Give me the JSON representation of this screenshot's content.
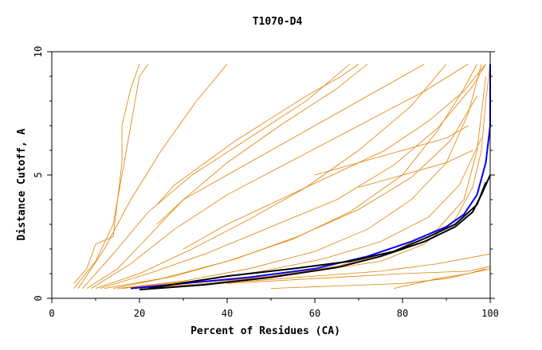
{
  "chart_data": {
    "type": "line",
    "title": "T1070-D4",
    "xlabel": "Percent of Residues (CA)",
    "ylabel": "Distance Cutoff, A",
    "xlim": [
      0,
      100
    ],
    "ylim": [
      0,
      10
    ],
    "x_ticks": [
      "0",
      "20",
      "40",
      "60",
      "80",
      "100"
    ],
    "y_ticks": [
      "0",
      "5",
      "10"
    ],
    "grid": false,
    "colors": {
      "background_models": "#e08000",
      "highlight_blue": "#0000ff",
      "highlight_black": "#000000"
    },
    "series": [
      {
        "color": "#e08000",
        "points": [
          [
            18,
            0.4
          ],
          [
            30,
            0.6
          ],
          [
            45,
            0.8
          ],
          [
            60,
            1.1
          ],
          [
            75,
            1.5
          ],
          [
            85,
            2.2
          ],
          [
            92,
            3.2
          ],
          [
            96,
            4.5
          ],
          [
            98,
            6.0
          ],
          [
            99,
            8.0
          ],
          [
            100,
            9.5
          ]
        ]
      },
      {
        "color": "#e08000",
        "points": [
          [
            5,
            0.4
          ],
          [
            10,
            1.5
          ],
          [
            14,
            3.0
          ],
          [
            16,
            5.0
          ],
          [
            18,
            7.0
          ],
          [
            20,
            9.0
          ],
          [
            22,
            9.5
          ]
        ]
      },
      {
        "color": "#e08000",
        "points": [
          [
            8,
            0.4
          ],
          [
            15,
            1.2
          ],
          [
            22,
            2.5
          ],
          [
            30,
            4.0
          ],
          [
            40,
            5.5
          ],
          [
            52,
            7.0
          ],
          [
            65,
            8.5
          ],
          [
            72,
            9.5
          ]
        ]
      },
      {
        "color": "#e08000",
        "points": [
          [
            10,
            0.4
          ],
          [
            20,
            1.0
          ],
          [
            32,
            2.0
          ],
          [
            45,
            3.2
          ],
          [
            58,
            4.5
          ],
          [
            70,
            6.0
          ],
          [
            82,
            7.8
          ],
          [
            90,
            9.5
          ]
        ]
      },
      {
        "color": "#e08000",
        "points": [
          [
            12,
            0.4
          ],
          [
            25,
            0.8
          ],
          [
            40,
            1.5
          ],
          [
            55,
            2.4
          ],
          [
            68,
            3.5
          ],
          [
            80,
            5.0
          ],
          [
            88,
            6.8
          ],
          [
            94,
            8.5
          ],
          [
            97,
            9.5
          ]
        ]
      },
      {
        "color": "#e08000",
        "points": [
          [
            15,
            0.4
          ],
          [
            30,
            0.7
          ],
          [
            45,
            1.2
          ],
          [
            60,
            1.9
          ],
          [
            72,
            2.8
          ],
          [
            82,
            4.0
          ],
          [
            90,
            5.5
          ],
          [
            95,
            7.5
          ],
          [
            98,
            9.5
          ]
        ]
      },
      {
        "color": "#e08000",
        "points": [
          [
            20,
            0.4
          ],
          [
            35,
            0.6
          ],
          [
            50,
            0.9
          ],
          [
            65,
            1.3
          ],
          [
            78,
            1.9
          ],
          [
            88,
            2.8
          ],
          [
            94,
            4.0
          ],
          [
            97,
            6.0
          ],
          [
            99,
            9.0
          ]
        ]
      },
      {
        "color": "#e08000",
        "points": [
          [
            6,
            0.4
          ],
          [
            12,
            2.0
          ],
          [
            18,
            4.0
          ],
          [
            25,
            6.0
          ],
          [
            33,
            8.0
          ],
          [
            40,
            9.5
          ]
        ]
      },
      {
        "color": "#e08000",
        "points": [
          [
            7,
            0.4
          ],
          [
            14,
            1.8
          ],
          [
            22,
            3.5
          ],
          [
            32,
            5.0
          ],
          [
            45,
            6.5
          ],
          [
            58,
            8.0
          ],
          [
            68,
            9.5
          ]
        ]
      },
      {
        "color": "#e08000",
        "points": [
          [
            9,
            0.4
          ],
          [
            18,
            1.4
          ],
          [
            28,
            2.8
          ],
          [
            40,
            4.2
          ],
          [
            55,
            5.6
          ],
          [
            70,
            7.0
          ],
          [
            85,
            8.4
          ],
          [
            95,
            9.5
          ]
        ]
      },
      {
        "color": "#e08000",
        "points": [
          [
            11,
            0.4
          ],
          [
            22,
            1.0
          ],
          [
            35,
            1.8
          ],
          [
            50,
            2.9
          ],
          [
            65,
            4.0
          ],
          [
            78,
            5.4
          ],
          [
            88,
            6.9
          ],
          [
            96,
            8.6
          ],
          [
            99,
            9.5
          ]
        ]
      },
      {
        "color": "#e08000",
        "points": [
          [
            14,
            0.4
          ],
          [
            28,
            0.9
          ],
          [
            42,
            1.6
          ],
          [
            56,
            2.5
          ],
          [
            70,
            3.6
          ],
          [
            82,
            4.9
          ],
          [
            91,
            6.4
          ],
          [
            97,
            8.2
          ]
        ]
      },
      {
        "color": "#e08000",
        "points": [
          [
            16,
            0.4
          ],
          [
            32,
            0.7
          ],
          [
            48,
            1.1
          ],
          [
            62,
            1.6
          ],
          [
            75,
            2.3
          ],
          [
            86,
            3.3
          ],
          [
            93,
            4.6
          ],
          [
            98,
            6.5
          ]
        ]
      },
      {
        "color": "#e08000",
        "points": [
          [
            30,
            0.5
          ],
          [
            45,
            0.7
          ],
          [
            60,
            0.9
          ],
          [
            75,
            1.1
          ],
          [
            88,
            1.4
          ],
          [
            100,
            1.8
          ]
        ]
      },
      {
        "color": "#e08000",
        "points": [
          [
            40,
            0.6
          ],
          [
            60,
            0.8
          ],
          [
            80,
            1.0
          ],
          [
            95,
            1.1
          ],
          [
            100,
            1.3
          ]
        ]
      },
      {
        "color": "#e08000",
        "points": [
          [
            50,
            0.4
          ],
          [
            65,
            0.5
          ],
          [
            80,
            0.6
          ],
          [
            90,
            0.8
          ],
          [
            100,
            1.2
          ]
        ]
      },
      {
        "color": "#e08000",
        "points": [
          [
            5,
            0.6
          ],
          [
            8,
            1.2
          ],
          [
            10,
            2.2
          ],
          [
            14,
            2.5
          ],
          [
            15,
            4.0
          ],
          [
            16,
            5.5
          ],
          [
            16,
            7.0
          ],
          [
            18,
            8.5
          ],
          [
            20,
            9.5
          ]
        ]
      },
      {
        "color": "#e08000",
        "points": [
          [
            24,
            3.8
          ],
          [
            28,
            4.6
          ],
          [
            35,
            5.5
          ],
          [
            42,
            6.4
          ],
          [
            50,
            7.3
          ],
          [
            58,
            8.2
          ],
          [
            66,
            9.0
          ],
          [
            70,
            9.5
          ]
        ]
      },
      {
        "color": "#e08000",
        "points": [
          [
            24,
            3.0
          ],
          [
            30,
            4.0
          ],
          [
            40,
            5.0
          ],
          [
            50,
            6.0
          ],
          [
            60,
            7.0
          ],
          [
            70,
            8.0
          ],
          [
            80,
            9.0
          ],
          [
            85,
            9.5
          ]
        ]
      },
      {
        "color": "#e08000",
        "points": [
          [
            30,
            2.0
          ],
          [
            40,
            3.0
          ],
          [
            52,
            4.0
          ],
          [
            64,
            5.0
          ],
          [
            76,
            6.0
          ],
          [
            86,
            7.2
          ],
          [
            94,
            8.4
          ],
          [
            99,
            9.5
          ]
        ]
      },
      {
        "color": "#e08000",
        "points": [
          [
            60,
            5.0
          ],
          [
            70,
            5.5
          ],
          [
            80,
            6.0
          ],
          [
            90,
            6.5
          ],
          [
            95,
            7.0
          ]
        ]
      },
      {
        "color": "#e08000",
        "points": [
          [
            70,
            4.5
          ],
          [
            80,
            5.0
          ],
          [
            90,
            5.5
          ],
          [
            96,
            6.0
          ]
        ]
      },
      {
        "color": "#e08000",
        "points": [
          [
            78,
            0.4
          ],
          [
            88,
            0.8
          ],
          [
            95,
            1.0
          ],
          [
            99,
            1.2
          ]
        ]
      },
      {
        "color": "#0000ff",
        "points": [
          [
            18,
            0.4
          ],
          [
            30,
            0.6
          ],
          [
            45,
            0.85
          ],
          [
            60,
            1.2
          ],
          [
            72,
            1.7
          ],
          [
            82,
            2.3
          ],
          [
            90,
            2.9
          ],
          [
            94,
            3.4
          ],
          [
            97,
            4.2
          ],
          [
            99,
            5.5
          ],
          [
            100,
            7.0
          ],
          [
            100,
            9.5
          ]
        ]
      },
      {
        "color": "#000000",
        "points": [
          [
            20,
            0.35
          ],
          [
            35,
            0.55
          ],
          [
            50,
            0.85
          ],
          [
            65,
            1.25
          ],
          [
            75,
            1.7
          ],
          [
            85,
            2.3
          ],
          [
            92,
            2.9
          ],
          [
            96,
            3.5
          ],
          [
            98,
            4.2
          ],
          [
            100,
            5.0
          ]
        ]
      },
      {
        "color": "#000000",
        "points": [
          [
            22,
            0.4
          ],
          [
            40,
            0.9
          ],
          [
            55,
            1.2
          ],
          [
            68,
            1.5
          ],
          [
            78,
            1.9
          ],
          [
            86,
            2.5
          ],
          [
            92,
            3.0
          ],
          [
            97,
            3.8
          ],
          [
            99,
            4.7
          ]
        ]
      }
    ]
  }
}
